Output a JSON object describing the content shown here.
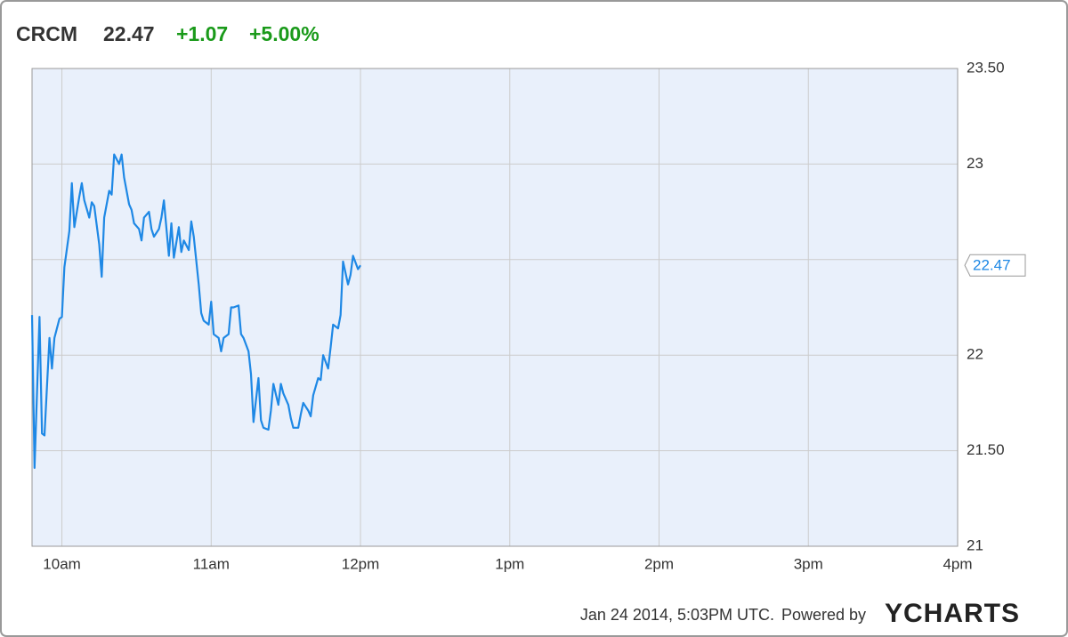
{
  "chart_data": {
    "type": "line",
    "symbol": "CRCM",
    "price": 22.47,
    "change": "+1.07",
    "change_pct": "+5.00%",
    "timestamp": "Jan 24 2014, 5:03PM UTC.",
    "powered_by": "Powered by",
    "logo": "YCHARTS",
    "color": "#1e88e5",
    "background": "#e9f0fb",
    "grid": true,
    "xlim": [
      588,
      960
    ],
    "xticks": [
      {
        "value": 600,
        "label": "10am"
      },
      {
        "value": 660,
        "label": "11am"
      },
      {
        "value": 720,
        "label": "12pm"
      },
      {
        "value": 780,
        "label": "1pm"
      },
      {
        "value": 840,
        "label": "2pm"
      },
      {
        "value": 900,
        "label": "3pm"
      },
      {
        "value": 960,
        "label": "4pm"
      }
    ],
    "ylim": [
      21,
      23.5
    ],
    "yticks": [
      21,
      {
        "value": 21.5,
        "label": "21.50"
      },
      22,
      23,
      {
        "value": 23.5,
        "label": "23.50"
      }
    ],
    "ygrid": [
      21,
      21.5,
      22,
      22.5,
      23,
      23.5
    ],
    "x": [
      588,
      589,
      591,
      592,
      593,
      595,
      596,
      597,
      599,
      600,
      601,
      603,
      604,
      605,
      607,
      608,
      609,
      611,
      612,
      613,
      615,
      616,
      617,
      619,
      620,
      621,
      623,
      624,
      625,
      627,
      628,
      629,
      631,
      632,
      633,
      635,
      636,
      637,
      639,
      640,
      641,
      643,
      644,
      645,
      647,
      648,
      649,
      651,
      652,
      653,
      655,
      656,
      657,
      659,
      660,
      661,
      663,
      664,
      665,
      667,
      668,
      669,
      671,
      672,
      673,
      675,
      676,
      677,
      679,
      680,
      681,
      683,
      684,
      685,
      687,
      688,
      689,
      691,
      692,
      693,
      695,
      696,
      697,
      699,
      700,
      701,
      703,
      704,
      705,
      707,
      708,
      709,
      711,
      712,
      713,
      715,
      716,
      717,
      719,
      720
    ],
    "values": [
      22.21,
      21.41,
      22.2,
      21.59,
      21.58,
      22.09,
      21.93,
      22.09,
      22.19,
      22.2,
      22.46,
      22.65,
      22.9,
      22.67,
      22.83,
      22.9,
      22.81,
      22.72,
      22.8,
      22.78,
      22.58,
      22.41,
      22.72,
      22.86,
      22.84,
      23.05,
      23.0,
      23.05,
      22.93,
      22.79,
      22.76,
      22.69,
      22.66,
      22.6,
      22.72,
      22.75,
      22.66,
      22.62,
      22.66,
      22.72,
      22.81,
      22.52,
      22.69,
      22.51,
      22.67,
      22.54,
      22.6,
      22.55,
      22.7,
      22.62,
      22.37,
      22.22,
      22.18,
      22.16,
      22.28,
      22.11,
      22.09,
      22.02,
      22.09,
      22.11,
      22.25,
      22.25,
      22.26,
      22.11,
      22.09,
      22.02,
      21.9,
      21.65,
      21.88,
      21.66,
      21.62,
      21.61,
      21.71,
      21.85,
      21.74,
      21.85,
      21.8,
      21.74,
      21.67,
      21.62,
      21.62,
      21.69,
      21.75,
      21.71,
      21.68,
      21.79,
      21.88,
      21.87,
      22.0,
      21.93,
      22.04,
      22.16,
      22.14,
      22.21,
      22.49,
      22.37,
      22.42,
      22.52,
      22.45,
      22.47
    ]
  }
}
